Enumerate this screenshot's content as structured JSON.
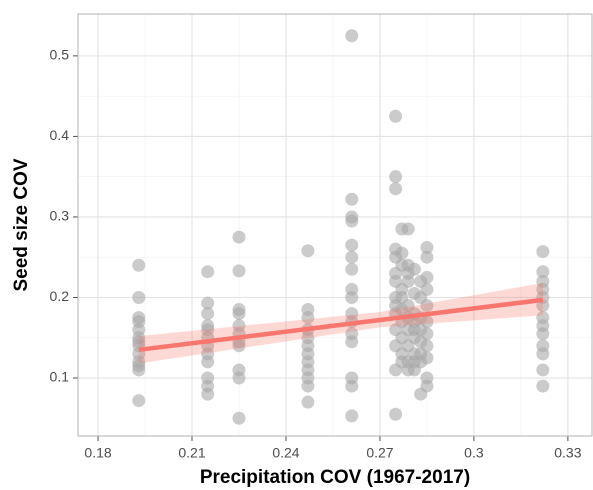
{
  "chart_data": {
    "type": "scatter",
    "x_label": "Precipitation COV (1967-2017)",
    "y_label": "Seed size COV",
    "x": [
      0.193,
      0.193,
      0.193,
      0.193,
      0.193,
      0.193,
      0.193,
      0.193,
      0.193,
      0.193,
      0.193,
      0.193,
      0.193,
      0.215,
      0.215,
      0.215,
      0.215,
      0.215,
      0.215,
      0.215,
      0.215,
      0.215,
      0.215,
      0.215,
      0.215,
      0.225,
      0.225,
      0.225,
      0.225,
      0.225,
      0.225,
      0.225,
      0.225,
      0.225,
      0.225,
      0.225,
      0.247,
      0.247,
      0.247,
      0.247,
      0.247,
      0.247,
      0.247,
      0.247,
      0.247,
      0.247,
      0.247,
      0.247,
      0.261,
      0.261,
      0.261,
      0.261,
      0.261,
      0.261,
      0.261,
      0.261,
      0.261,
      0.261,
      0.261,
      0.261,
      0.261,
      0.261,
      0.261,
      0.261,
      0.275,
      0.275,
      0.275,
      0.275,
      0.275,
      0.275,
      0.275,
      0.275,
      0.275,
      0.275,
      0.275,
      0.275,
      0.275,
      0.275,
      0.277,
      0.277,
      0.277,
      0.277,
      0.277,
      0.277,
      0.277,
      0.277,
      0.277,
      0.277,
      0.279,
      0.279,
      0.279,
      0.279,
      0.279,
      0.279,
      0.279,
      0.279,
      0.279,
      0.279,
      0.281,
      0.281,
      0.281,
      0.281,
      0.281,
      0.281,
      0.281,
      0.281,
      0.281,
      0.283,
      0.283,
      0.283,
      0.283,
      0.283,
      0.283,
      0.283,
      0.283,
      0.285,
      0.285,
      0.285,
      0.285,
      0.285,
      0.285,
      0.285,
      0.285,
      0.285,
      0.285,
      0.285,
      0.322,
      0.322,
      0.322,
      0.322,
      0.322,
      0.322,
      0.322,
      0.322,
      0.322,
      0.322,
      0.322,
      0.322,
      0.322
    ],
    "values": [
      0.24,
      0.2,
      0.175,
      0.17,
      0.16,
      0.15,
      0.145,
      0.14,
      0.13,
      0.12,
      0.115,
      0.11,
      0.072,
      0.232,
      0.193,
      0.18,
      0.165,
      0.16,
      0.15,
      0.14,
      0.13,
      0.12,
      0.1,
      0.09,
      0.08,
      0.275,
      0.233,
      0.185,
      0.18,
      0.165,
      0.155,
      0.145,
      0.14,
      0.11,
      0.1,
      0.05,
      0.258,
      0.185,
      0.175,
      0.16,
      0.15,
      0.14,
      0.13,
      0.12,
      0.11,
      0.1,
      0.09,
      0.07,
      0.525,
      0.322,
      0.3,
      0.295,
      0.265,
      0.25,
      0.235,
      0.21,
      0.2,
      0.18,
      0.17,
      0.155,
      0.145,
      0.1,
      0.09,
      0.053,
      0.425,
      0.35,
      0.335,
      0.26,
      0.25,
      0.23,
      0.22,
      0.2,
      0.19,
      0.18,
      0.16,
      0.14,
      0.11,
      0.055,
      0.285,
      0.255,
      0.24,
      0.21,
      0.2,
      0.185,
      0.17,
      0.15,
      0.13,
      0.12,
      0.285,
      0.24,
      0.23,
      0.22,
      0.19,
      0.175,
      0.16,
      0.14,
      0.12,
      0.11,
      0.235,
      0.205,
      0.18,
      0.17,
      0.16,
      0.15,
      0.13,
      0.12,
      0.11,
      0.22,
      0.2,
      0.175,
      0.16,
      0.145,
      0.13,
      0.12,
      0.08,
      0.262,
      0.25,
      0.225,
      0.21,
      0.19,
      0.17,
      0.155,
      0.14,
      0.125,
      0.1,
      0.09,
      0.257,
      0.232,
      0.22,
      0.21,
      0.2,
      0.19,
      0.175,
      0.165,
      0.155,
      0.14,
      0.13,
      0.11,
      0.09
    ],
    "color": "#a8a8a8",
    "fit": {
      "type": "line",
      "x": [
        0.193,
        0.27,
        0.322
      ],
      "values": [
        0.135,
        0.172,
        0.197
      ],
      "band_lower": [
        0.118,
        0.163,
        0.178
      ],
      "band_upper": [
        0.152,
        0.182,
        0.218
      ],
      "color": "#f8766d"
    },
    "xlim": [
      0.1736,
      0.3377
    ],
    "xticks": [
      0.18,
      0.21,
      0.24,
      0.27,
      0.3,
      0.33
    ],
    "ylim": [
      0.028,
      0.552
    ],
    "yticks": [
      0.1,
      0.2,
      0.3,
      0.4,
      0.5
    ],
    "grid": true
  }
}
